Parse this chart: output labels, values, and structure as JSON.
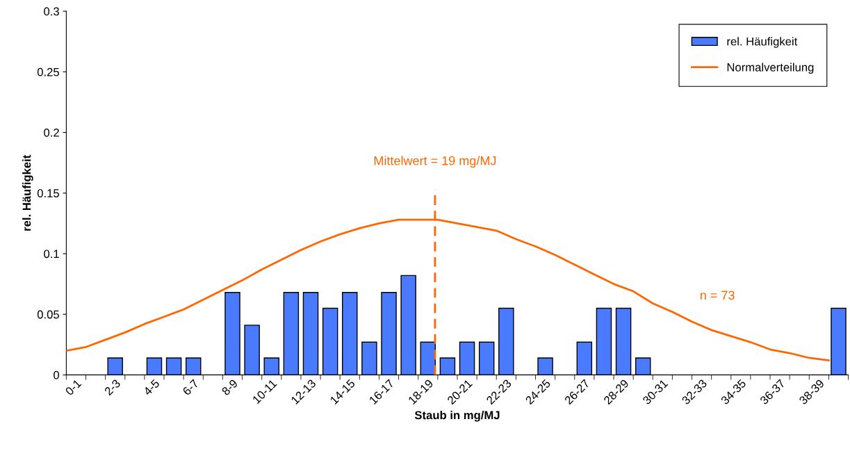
{
  "chart_data": {
    "type": "bar",
    "xlabel": "Staub in mg/MJ",
    "ylabel": "rel. Häufigkeit",
    "categories": [
      "0-1",
      null,
      "2-3",
      null,
      "4-5",
      null,
      "6-7",
      null,
      "8-9",
      null,
      "10-11",
      null,
      "12-13",
      null,
      "14-15",
      null,
      "16-17",
      null,
      "18-19",
      null,
      "20-21",
      null,
      "22-23",
      null,
      "24-25",
      null,
      "26-27",
      null,
      "28-29",
      null,
      "30-31",
      null,
      "32-33",
      null,
      "34-35",
      null,
      "36-37",
      null,
      "38-39",
      null
    ],
    "series": [
      {
        "name": "rel. Häufigkeit",
        "color": "#4a7bff",
        "values": [
          0,
          0,
          0.014,
          0,
          0.014,
          0.014,
          0.014,
          0,
          0.068,
          0.041,
          0.014,
          0.068,
          0.068,
          0.055,
          0.068,
          0.027,
          0.068,
          0.082,
          0.027,
          0.014,
          0.027,
          0.027,
          0.055,
          0,
          0.014,
          0,
          0.027,
          0.055,
          0.055,
          0.014,
          0,
          0,
          0,
          0,
          0,
          0,
          0,
          0,
          0,
          0.055
        ]
      },
      {
        "name": "Normalverteilung",
        "type": "line",
        "color": "#ff6600",
        "values": [
          0.02,
          0.023,
          0.029,
          0.035,
          0.042,
          0.048,
          0.054,
          0.062,
          0.07,
          0.078,
          0.087,
          0.095,
          0.103,
          0.11,
          0.116,
          0.121,
          0.125,
          0.128,
          0.128,
          0.128,
          0.125,
          0.122,
          0.119,
          0.112,
          0.106,
          0.099,
          0.091,
          0.083,
          0.075,
          0.069,
          0.059,
          0.052,
          0.044,
          0.037,
          0.032,
          0.027,
          0.021,
          0.018,
          0.014,
          0.012
        ]
      }
    ],
    "ylim": [
      0,
      0.3
    ],
    "yticks": [
      0,
      0.05,
      0.1,
      0.15,
      0.2,
      0.25,
      0.3
    ],
    "annotations": [
      "Mittelwert = 19 mg/MJ",
      "n = 73"
    ],
    "legend": "top right",
    "grid": false
  }
}
